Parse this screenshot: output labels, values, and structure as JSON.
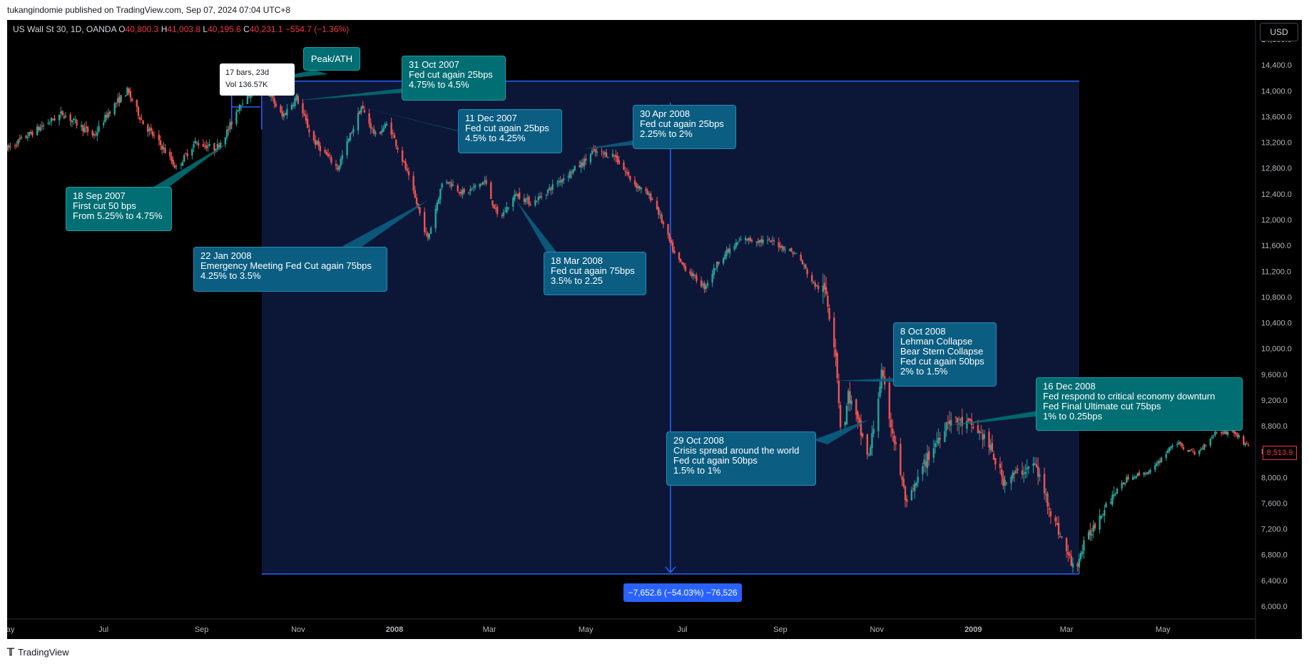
{
  "header": {
    "published": "tukangindomie published on TradingView.com, Sep 07, 2024 07:04 UTC+8"
  },
  "legend": {
    "symbol": "US Wall St 30, 1D, OANDA",
    "open_label": "O",
    "open": "40,800.3",
    "high_label": "H",
    "high": "41,003.8",
    "low_label": "L",
    "low": "40,195.6",
    "close_label": "C",
    "close": "40,231.1",
    "change": "−554.7 (−1.36%)"
  },
  "currency": "USD",
  "last_price": "8,513.9",
  "footer": {
    "brand": "TradingView"
  },
  "tooltip": {
    "line1": "17 bars, 23d",
    "line2": "Vol 136.57K"
  },
  "measure_label": "−7,652.6 (−54.03%) −76,526",
  "annotations": [
    {
      "text": "Peak/ATH"
    },
    {
      "text": "31 Oct 2007\nFed cut again 25bps\n4.75% to 4.5%"
    },
    {
      "text": "11 Dec 2007\nFed cut again 25bps\n4.5% to 4.25%"
    },
    {
      "text": "30 Apr 2008\nFed cut again 25bps\n2.25% to 2%"
    },
    {
      "text": "18 Sep 2007\nFirst cut 50 bps\nFrom 5.25% to 4.75%"
    },
    {
      "text": "22 Jan 2008\nEmergency Meeting Fed Cut again 75bps\n4.25% to 3.5%"
    },
    {
      "text": "18 Mar 2008\nFed cut again 75bps\n3.5% to 2.25"
    },
    {
      "text": "8 Oct 2008\nLehman Collapse\nBear Stern Collapse\nFed cut again 50bps\n2% to 1.5%"
    },
    {
      "text": "16 Dec 2008\nFed respond to critical economy downturn\nFed Final Ultimate cut 75bps\n1% to 0.25bps"
    },
    {
      "text": "29 Oct 2008\nCrisis spread around the world\nFed cut again 50bps\n1.5% to 1%"
    }
  ],
  "colors": {
    "up": "#26a69a",
    "down": "#ef5350",
    "measure": "#2962ff",
    "background": "#000000",
    "box_fill": "#0c1738"
  },
  "chart_data": {
    "type": "line",
    "title": "US Wall St 30, 1D, OANDA",
    "xlabel": "",
    "ylabel": "",
    "x_ticks": [
      "May",
      "Jul",
      "Sep",
      "Nov",
      "2008",
      "Mar",
      "May",
      "Jul",
      "Sep",
      "Nov",
      "2009",
      "Mar",
      "May"
    ],
    "y_ticks": [
      6000,
      6400,
      6800,
      7200,
      7600,
      8000,
      8400,
      8800,
      9200,
      9600,
      10000,
      10400,
      10800,
      11200,
      11600,
      12000,
      12400,
      12800,
      13200,
      13600,
      14000,
      14400,
      14800
    ],
    "ylim": [
      5800,
      15100
    ],
    "grid": false,
    "series": [
      {
        "values": [
          [
            "2007-05-01",
            13100
          ],
          [
            "2007-05-20",
            13400
          ],
          [
            "2007-06-05",
            13650
          ],
          [
            "2007-06-25",
            13300
          ],
          [
            "2007-07-05",
            13700
          ],
          [
            "2007-07-16",
            14000
          ],
          [
            "2007-07-26",
            13500
          ],
          [
            "2007-08-08",
            13100
          ],
          [
            "2007-08-16",
            12800
          ],
          [
            "2007-08-28",
            13200
          ],
          [
            "2007-09-10",
            13100
          ],
          [
            "2007-09-18",
            13400
          ],
          [
            "2007-09-25",
            13800
          ],
          [
            "2007-10-09",
            14150
          ],
          [
            "2007-10-22",
            13600
          ],
          [
            "2007-10-31",
            13900
          ],
          [
            "2007-11-10",
            13250
          ],
          [
            "2007-11-26",
            12800
          ],
          [
            "2007-12-11",
            13750
          ],
          [
            "2007-12-20",
            13300
          ],
          [
            "2007-12-28",
            13500
          ],
          [
            "2008-01-08",
            12800
          ],
          [
            "2008-01-22",
            11700
          ],
          [
            "2008-02-01",
            12650
          ],
          [
            "2008-02-14",
            12400
          ],
          [
            "2008-02-27",
            12600
          ],
          [
            "2008-03-07",
            12000
          ],
          [
            "2008-03-18",
            12400
          ],
          [
            "2008-03-28",
            12250
          ],
          [
            "2008-04-14",
            12600
          ],
          [
            "2008-04-30",
            12900
          ],
          [
            "2008-05-05",
            13050
          ],
          [
            "2008-05-19",
            13000
          ],
          [
            "2008-05-30",
            12600
          ],
          [
            "2008-06-13",
            12300
          ],
          [
            "2008-06-27",
            11400
          ],
          [
            "2008-07-15",
            10950
          ],
          [
            "2008-07-25",
            11400
          ],
          [
            "2008-08-08",
            11700
          ],
          [
            "2008-08-28",
            11650
          ],
          [
            "2008-09-12",
            11450
          ],
          [
            "2008-09-22",
            11000
          ],
          [
            "2008-09-30",
            10850
          ],
          [
            "2008-10-06",
            9950
          ],
          [
            "2008-10-10",
            8450
          ],
          [
            "2008-10-14",
            9300
          ],
          [
            "2008-10-27",
            8300
          ],
          [
            "2008-11-04",
            9600
          ],
          [
            "2008-11-20",
            7550
          ],
          [
            "2008-12-01",
            8200
          ],
          [
            "2008-12-16",
            8900
          ],
          [
            "2008-12-31",
            8800
          ],
          [
            "2009-01-09",
            8600
          ],
          [
            "2009-01-20",
            7950
          ],
          [
            "2009-02-09",
            8200
          ],
          [
            "2009-02-20",
            7400
          ],
          [
            "2009-03-06",
            6550
          ],
          [
            "2009-03-12",
            6950
          ],
          [
            "2009-03-26",
            7600
          ],
          [
            "2009-04-09",
            8000
          ],
          [
            "2009-04-24",
            8100
          ],
          [
            "2009-05-08",
            8550
          ],
          [
            "2009-05-22",
            8350
          ],
          [
            "2009-06-03",
            8700
          ],
          [
            "2009-06-15",
            8700
          ],
          [
            "2009-06-22",
            8513.9
          ]
        ]
      }
    ],
    "measure": {
      "start_date": "2007-10-09",
      "end_date": "2009-03-09",
      "high": 14150,
      "low": 6500
    }
  }
}
